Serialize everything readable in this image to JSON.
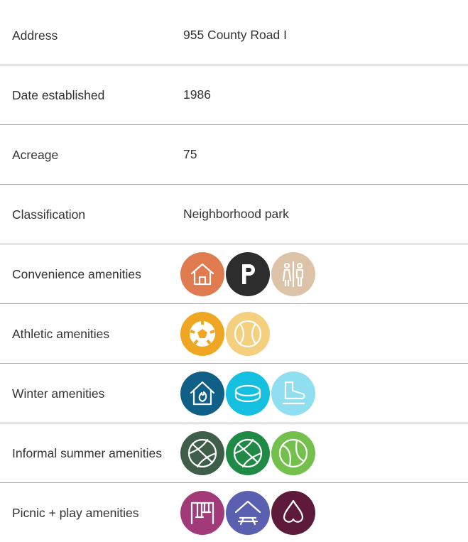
{
  "table": {
    "rows": [
      {
        "label": "Address",
        "value": "955 County Road I"
      },
      {
        "label": "Date established",
        "value": "1986"
      },
      {
        "label": "Acreage",
        "value": "75"
      },
      {
        "label": "Classification",
        "value": "Neighborhood park"
      },
      {
        "label": "Convenience amenities"
      },
      {
        "label": "Athletic amenities"
      },
      {
        "label": "Winter amenities"
      },
      {
        "label": "Informal summer amenities"
      },
      {
        "label": "Picnic + play amenities"
      }
    ]
  }
}
